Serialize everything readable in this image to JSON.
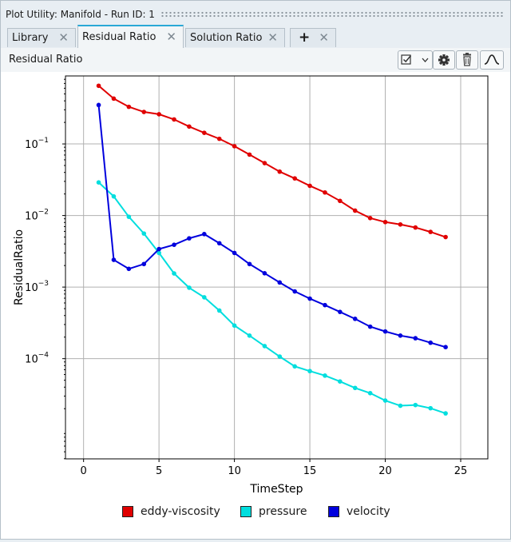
{
  "window": {
    "title": "Plot Utility: Manifold - Run ID: 1"
  },
  "tabs": [
    {
      "label": "Library",
      "close": "✕",
      "active": false
    },
    {
      "label": "Residual Ratio",
      "close": "✕",
      "active": true
    },
    {
      "label": "Solution Ratio",
      "close": "✕",
      "active": false
    },
    {
      "label": "+",
      "close": "✕",
      "active": false
    }
  ],
  "toolbar": {
    "panel_title": "Residual Ratio",
    "icons": [
      "checkbox-dropdown-icon",
      "gear-icon",
      "trash-icon",
      "curve-icon"
    ]
  },
  "chart_data": {
    "type": "line",
    "xlabel": "TimeStep",
    "ylabel": "ResidualRatio",
    "xlim": [
      -1.2,
      26.8
    ],
    "ylim_log10": [
      -5.4,
      -0.05
    ],
    "yscale": "log",
    "grid": true,
    "legend_position": "bottom",
    "x_ticks": [
      0,
      5,
      10,
      15,
      20,
      25
    ],
    "y_ticks": [
      {
        "base": "10",
        "exp": "−1",
        "log": -1
      },
      {
        "base": "10",
        "exp": "−2",
        "log": -2
      },
      {
        "base": "10",
        "exp": "−3",
        "log": -3
      },
      {
        "base": "10",
        "exp": "−4",
        "log": -4
      }
    ],
    "x": [
      1,
      2,
      3,
      4,
      5,
      6,
      7,
      8,
      9,
      10,
      11,
      12,
      13,
      14,
      15,
      16,
      17,
      18,
      19,
      20,
      21,
      22,
      23,
      24
    ],
    "series": [
      {
        "name": "eddy-viscosity",
        "color": "#e00000",
        "values": [
          0.65,
          0.43,
          0.33,
          0.28,
          0.26,
          0.22,
          0.175,
          0.143,
          0.118,
          0.093,
          0.071,
          0.054,
          0.041,
          0.033,
          0.026,
          0.021,
          0.016,
          0.0117,
          0.0092,
          0.0081,
          0.0075,
          0.0068,
          0.0059,
          0.005
        ]
      },
      {
        "name": "pressure",
        "color": "#00dede",
        "values": [
          0.029,
          0.0185,
          0.0096,
          0.0056,
          0.003,
          0.00155,
          0.00098,
          0.00072,
          0.00047,
          0.00029,
          0.00021,
          0.00015,
          0.000107,
          7.8e-05,
          6.7e-05,
          5.8e-05,
          4.8e-05,
          3.9e-05,
          3.3e-05,
          2.6e-05,
          2.2e-05,
          2.25e-05,
          2.03e-05,
          1.72e-05
        ]
      },
      {
        "name": "velocity",
        "color": "#0000dd",
        "values": [
          0.35,
          0.0024,
          0.0018,
          0.0021,
          0.0034,
          0.0039,
          0.0048,
          0.0055,
          0.0041,
          0.003,
          0.0021,
          0.00156,
          0.00116,
          0.00087,
          0.00069,
          0.00056,
          0.00045,
          0.00036,
          0.00028,
          0.00024,
          0.00021,
          0.000193,
          0.000167,
          0.000145
        ]
      }
    ]
  }
}
